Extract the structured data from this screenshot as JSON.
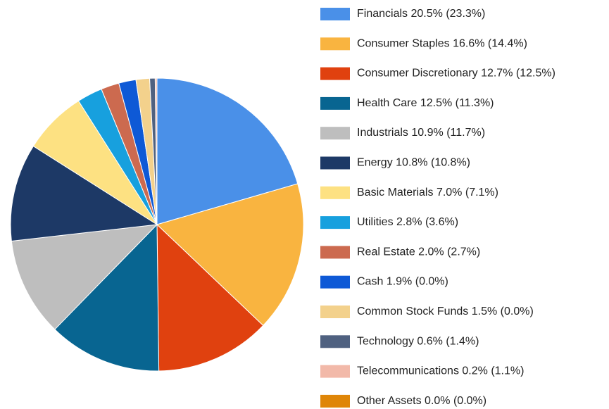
{
  "chart_data": {
    "type": "pie",
    "categories": [
      "Financials",
      "Consumer Staples",
      "Consumer Discretionary",
      "Health Care",
      "Industrials",
      "Energy",
      "Basic Materials",
      "Utilities",
      "Real Estate",
      "Cash",
      "Common Stock Funds",
      "Technology",
      "Telecommunications",
      "Other Assets"
    ],
    "values": [
      20.5,
      16.6,
      12.7,
      12.5,
      10.9,
      10.8,
      7.0,
      2.8,
      2.0,
      1.9,
      1.5,
      0.6,
      0.2,
      0.0
    ],
    "value_labels": [
      "20.5%",
      "16.6%",
      "12.7%",
      "12.5%",
      "10.9%",
      "10.8%",
      "7.0%",
      "2.8%",
      "2.0%",
      "1.9%",
      "1.5%",
      "0.6%",
      "0.2%",
      "0.0%"
    ],
    "secondary_labels": [
      "(23.3%)",
      "(14.4%)",
      "(12.5%)",
      "(11.3%)",
      "(11.7%)",
      "(10.8%)",
      "(7.1%)",
      "(3.6%)",
      "(2.7%)",
      "(0.0%)",
      "(0.0%)",
      "(1.4%)",
      "(1.1%)",
      "(0.0%)"
    ],
    "colors": [
      "#4a90e8",
      "#f9b440",
      "#e0410f",
      "#086591",
      "#bebebe",
      "#1d3966",
      "#fde182",
      "#17a0de",
      "#cc6a4f",
      "#0e59d6",
      "#f3d18c",
      "#4f6180",
      "#f2b9a9",
      "#df8608"
    ],
    "legend": "right"
  }
}
